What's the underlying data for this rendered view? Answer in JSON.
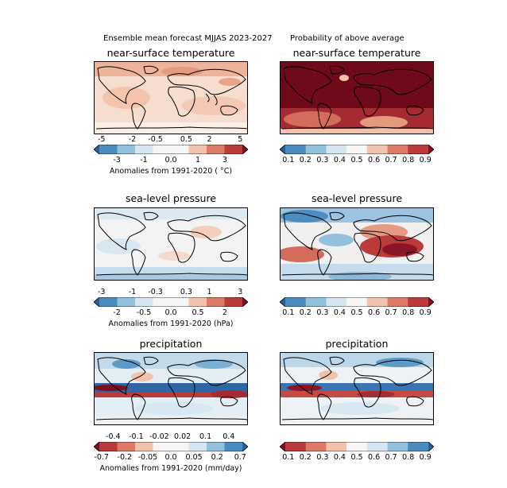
{
  "header": {
    "left_title": "Ensemble mean forecast MJJAS 2023-2027",
    "right_title": "Probability of above average"
  },
  "panels": {
    "tas_mean": {
      "title": "near-surface temperature"
    },
    "tas_prob": {
      "title": "near-surface temperature"
    },
    "psl_mean": {
      "title": "sea-level pressure"
    },
    "psl_prob": {
      "title": "sea-level pressure"
    },
    "pr_mean": {
      "title": "precipitation"
    },
    "pr_prob": {
      "title": "precipitation"
    }
  },
  "colorbars": {
    "tas": {
      "top_ticks": [
        "-5",
        "-2",
        "-0.5",
        "0.5",
        "2",
        "5"
      ],
      "bottom_ticks": [
        "-3",
        "-1",
        "0.0",
        "1",
        "3"
      ],
      "label": "Anomalies from 1991-2020 ( °C)",
      "colors": [
        "#2a5d9d",
        "#4b8cc0",
        "#92c1dd",
        "#d5e6f0",
        "#f7f6f5",
        "#f7f6f5",
        "#f4c2ab",
        "#db7b66",
        "#bb3a3a",
        "#7f0e1f"
      ]
    },
    "psl": {
      "top_ticks": [
        "-3",
        "-1",
        "-0.3",
        "0.3",
        "1",
        "3"
      ],
      "bottom_ticks": [
        "-2",
        "-0.5",
        "0.0",
        "0.5",
        "2"
      ],
      "label": "Anomalies from 1991-2020 (hPa)",
      "colors": [
        "#2a5d9d",
        "#4b8cc0",
        "#92c1dd",
        "#d5e6f0",
        "#f7f6f5",
        "#f7f6f5",
        "#f4c2ab",
        "#db7b66",
        "#bb3a3a",
        "#7f0e1f"
      ]
    },
    "pr": {
      "top_ticks": [
        "-0.4",
        "-0.1",
        "-0.02",
        "0.02",
        "0.1",
        "0.4"
      ],
      "bottom_ticks": [
        "-0.7",
        "-0.2",
        "-0.05",
        "0.0",
        "0.05",
        "0.2",
        "0.7"
      ],
      "label": "Anomalies from 1991-2020 (mm/day)",
      "colors": [
        "#7f0e1f",
        "#bb3a3a",
        "#db7b66",
        "#f4c2ab",
        "#f7f6f5",
        "#f7f6f5",
        "#d5e6f0",
        "#92c1dd",
        "#4b8cc0",
        "#2a5d9d"
      ]
    },
    "prob_temp": {
      "ticks": [
        "0.1",
        "0.2",
        "0.3",
        "0.4",
        "0.5",
        "0.6",
        "0.7",
        "0.8",
        "0.9"
      ],
      "colors": [
        "#2a5d9d",
        "#4b8cc0",
        "#92c1dd",
        "#d5e6f0",
        "#f7f6f5",
        "#f4c2ab",
        "#db7b66",
        "#bb3a3a",
        "#7f0e1f"
      ]
    },
    "prob_psl": {
      "ticks": [
        "0.1",
        "0.2",
        "0.3",
        "0.4",
        "0.5",
        "0.6",
        "0.7",
        "0.8",
        "0.9"
      ],
      "colors": [
        "#2a5d9d",
        "#4b8cc0",
        "#92c1dd",
        "#d5e6f0",
        "#f7f6f5",
        "#f4c2ab",
        "#db7b66",
        "#bb3a3a",
        "#7f0e1f"
      ]
    },
    "prob_pr": {
      "ticks": [
        "0.1",
        "0.2",
        "0.3",
        "0.4",
        "0.5",
        "0.6",
        "0.7",
        "0.8",
        "0.9"
      ],
      "colors": [
        "#7f0e1f",
        "#bb3a3a",
        "#db7b66",
        "#f4c2ab",
        "#f7f6f5",
        "#d5e6f0",
        "#92c1dd",
        "#4b8cc0",
        "#2a5d9d"
      ]
    }
  }
}
